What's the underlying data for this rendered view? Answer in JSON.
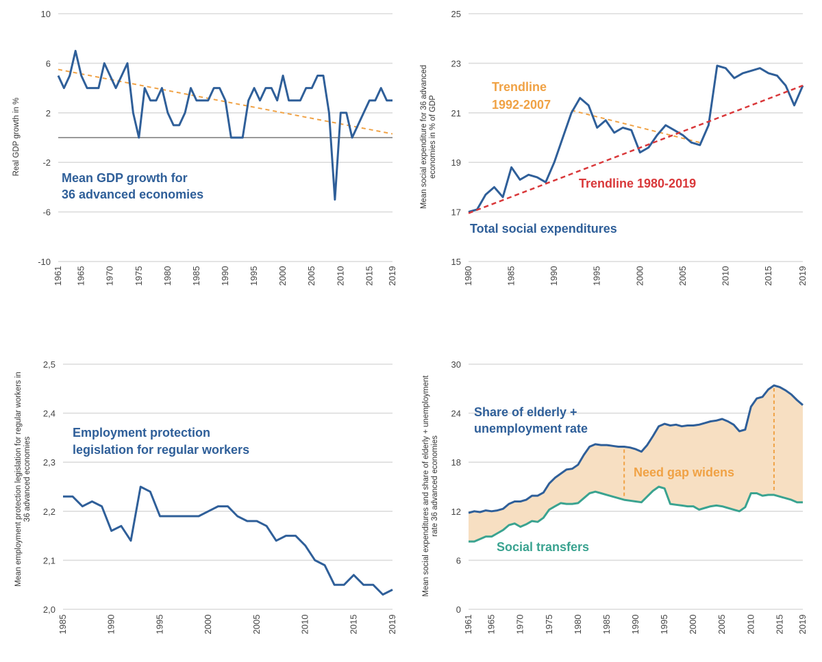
{
  "colors": {
    "series_blue": "#2f5f99",
    "trend_orange": "#f0a245",
    "trend_red": "#d9383a",
    "teal": "#3aa390",
    "gap_fill": "#f7dfc2",
    "zero_line": "#999999",
    "grid": "#dcdcdc"
  },
  "chart_data": [
    {
      "id": "gdp",
      "type": "line",
      "ylabel": "Real GDP growth in %",
      "ylim": [
        -10,
        10
      ],
      "yticks": [
        10,
        6,
        2,
        -2,
        -6,
        -10
      ],
      "xticks": [
        1961,
        1965,
        1970,
        1975,
        1980,
        1985,
        1990,
        1995,
        2000,
        2005,
        2010,
        2015,
        2019
      ],
      "grid": true,
      "zero_line": true,
      "annotation": "Mean GDP growth for\n36 advanced economies",
      "series": [
        {
          "x": [
            1961,
            1962,
            1963,
            1964,
            1965,
            1966,
            1967,
            1968,
            1969,
            1970,
            1971,
            1972,
            1973,
            1974,
            1975,
            1976,
            1977,
            1978,
            1979,
            1980,
            1981,
            1982,
            1983,
            1984,
            1985,
            1986,
            1987,
            1988,
            1989,
            1990,
            1991,
            1992,
            1993,
            1994,
            1995,
            1996,
            1997,
            1998,
            1999,
            2000,
            2001,
            2002,
            2003,
            2004,
            2005,
            2006,
            2007,
            2008,
            2009,
            2010,
            2011,
            2012,
            2013,
            2014,
            2015,
            2016,
            2017,
            2018,
            2019
          ],
          "values": [
            5,
            4,
            5,
            7,
            5,
            4,
            4,
            4,
            6,
            5,
            4,
            5,
            6,
            2,
            0,
            4,
            3,
            3,
            4,
            2,
            1,
            1,
            2,
            4,
            3,
            3,
            3,
            4,
            4,
            3,
            0,
            0,
            0,
            3,
            4,
            3,
            4,
            4,
            3,
            5,
            3,
            3,
            3,
            4,
            4,
            5,
            5,
            2,
            -5,
            2,
            2,
            0,
            1,
            2,
            3,
            3,
            4,
            3,
            3
          ]
        }
      ],
      "trendline": {
        "x": [
          1961,
          2019
        ],
        "values": [
          5.5,
          0.3
        ]
      }
    },
    {
      "id": "social",
      "type": "line",
      "ylabel": "Mean social expenditure for 36 advanced\neconomies  in % of GDP",
      "ylim": [
        15,
        25
      ],
      "yticks": [
        25,
        23,
        21,
        19,
        17,
        15
      ],
      "xticks": [
        1980,
        1985,
        1990,
        1995,
        2000,
        2005,
        2010,
        2015,
        2019
      ],
      "grid": true,
      "series": [
        {
          "name": "Total social expenditures",
          "x": [
            1980,
            1981,
            1982,
            1983,
            1984,
            1985,
            1986,
            1987,
            1988,
            1989,
            1990,
            1991,
            1992,
            1993,
            1994,
            1995,
            1996,
            1997,
            1998,
            1999,
            2000,
            2001,
            2002,
            2003,
            2004,
            2005,
            2006,
            2007,
            2008,
            2009,
            2010,
            2011,
            2012,
            2013,
            2014,
            2015,
            2016,
            2017,
            2018,
            2019
          ],
          "values": [
            17.0,
            17.1,
            17.7,
            18.0,
            17.6,
            18.8,
            18.3,
            18.5,
            18.4,
            18.2,
            19.0,
            20.0,
            21.0,
            21.6,
            21.3,
            20.4,
            20.7,
            20.2,
            20.4,
            20.3,
            19.4,
            19.6,
            20.1,
            20.5,
            20.3,
            20.1,
            19.8,
            19.7,
            20.5,
            22.9,
            22.8,
            22.4,
            22.6,
            22.7,
            22.8,
            22.6,
            22.5,
            22.1,
            21.3,
            22.1
          ]
        }
      ],
      "trendlines": [
        {
          "name": "Trendline\n1992-2007",
          "x": [
            1992,
            2007
          ],
          "values": [
            21.1,
            19.8
          ],
          "color_key": "trend_orange"
        },
        {
          "name": "Trendline 1980-2019",
          "x": [
            1980,
            2019
          ],
          "values": [
            16.95,
            22.1
          ],
          "color_key": "trend_red"
        }
      ]
    },
    {
      "id": "epl",
      "type": "line",
      "ylabel": "Mean employment protection legislation for regular workers in\n36 advanced economies",
      "ylim": [
        2.0,
        2.5
      ],
      "yticks": [
        "2,5",
        "2,4",
        "2,3",
        "2,2",
        "2,1",
        "2,0"
      ],
      "yticks_values": [
        2.5,
        2.4,
        2.3,
        2.2,
        2.1,
        2.0
      ],
      "xticks": [
        1985,
        1990,
        1995,
        2000,
        2005,
        2010,
        2015,
        2019
      ],
      "grid": true,
      "annotation": "Employment protection\nlegislation for regular workers",
      "series": [
        {
          "x": [
            1985,
            1986,
            1987,
            1988,
            1989,
            1990,
            1991,
            1992,
            1993,
            1994,
            1995,
            1996,
            1997,
            1998,
            1999,
            2000,
            2001,
            2002,
            2003,
            2004,
            2005,
            2006,
            2007,
            2008,
            2009,
            2010,
            2011,
            2012,
            2013,
            2014,
            2015,
            2016,
            2017,
            2018,
            2019
          ],
          "values": [
            2.23,
            2.23,
            2.21,
            2.22,
            2.21,
            2.16,
            2.17,
            2.14,
            2.25,
            2.24,
            2.19,
            2.19,
            2.19,
            2.19,
            2.19,
            2.2,
            2.21,
            2.21,
            2.19,
            2.18,
            2.18,
            2.17,
            2.14,
            2.15,
            2.15,
            2.13,
            2.1,
            2.09,
            2.05,
            2.05,
            2.07,
            2.05,
            2.05,
            2.03,
            2.04
          ]
        }
      ]
    },
    {
      "id": "need",
      "type": "area",
      "ylabel": "Mean social expenditures and share of elderly + unemployment\nrate 36 advanced economies",
      "ylim": [
        0,
        30
      ],
      "yticks": [
        30,
        24,
        18,
        12,
        6,
        0
      ],
      "xticks": [
        1961,
        1965,
        1970,
        1975,
        1980,
        1985,
        1990,
        1995,
        2000,
        2005,
        2010,
        2015,
        2019
      ],
      "grid": true,
      "gap_label": "Need gap widens",
      "gap_markers_x": [
        1988,
        2014
      ],
      "series": [
        {
          "name": "Share of elderly +\nunemployment rate",
          "x": [
            1961,
            1962,
            1963,
            1964,
            1965,
            1966,
            1967,
            1968,
            1969,
            1970,
            1971,
            1972,
            1973,
            1974,
            1975,
            1976,
            1977,
            1978,
            1979,
            1980,
            1981,
            1982,
            1983,
            1984,
            1985,
            1986,
            1987,
            1988,
            1989,
            1990,
            1991,
            1992,
            1993,
            1994,
            1995,
            1996,
            1997,
            1998,
            1999,
            2000,
            2001,
            2002,
            2003,
            2004,
            2005,
            2006,
            2007,
            2008,
            2009,
            2010,
            2011,
            2012,
            2013,
            2014,
            2015,
            2016,
            2017,
            2018,
            2019
          ],
          "values": [
            11.8,
            12.0,
            11.9,
            12.1,
            12.0,
            12.1,
            12.3,
            12.9,
            13.2,
            13.2,
            13.4,
            13.9,
            13.9,
            14.3,
            15.4,
            16.1,
            16.6,
            17.1,
            17.2,
            17.7,
            18.9,
            19.9,
            20.2,
            20.1,
            20.1,
            20.0,
            19.9,
            19.9,
            19.8,
            19.6,
            19.3,
            20.1,
            21.2,
            22.4,
            22.7,
            22.5,
            22.6,
            22.4,
            22.5,
            22.5,
            22.6,
            22.8,
            23.0,
            23.1,
            23.3,
            23.0,
            22.6,
            21.8,
            22.0,
            24.8,
            25.8,
            26.0,
            26.9,
            27.4,
            27.2,
            26.8,
            26.3,
            25.6,
            25.0
          ]
        },
        {
          "name": "Social transfers",
          "x": [
            1961,
            1962,
            1963,
            1964,
            1965,
            1966,
            1967,
            1968,
            1969,
            1970,
            1971,
            1972,
            1973,
            1974,
            1975,
            1976,
            1977,
            1978,
            1979,
            1980,
            1981,
            1982,
            1983,
            1984,
            1985,
            1986,
            1987,
            1988,
            1989,
            1990,
            1991,
            1992,
            1993,
            1994,
            1995,
            1996,
            1997,
            1998,
            1999,
            2000,
            2001,
            2002,
            2003,
            2004,
            2005,
            2006,
            2007,
            2008,
            2009,
            2010,
            2011,
            2012,
            2013,
            2014,
            2015,
            2016,
            2017,
            2018,
            2019
          ],
          "values": [
            8.3,
            8.3,
            8.6,
            8.9,
            8.9,
            9.3,
            9.7,
            10.3,
            10.5,
            10.1,
            10.4,
            10.8,
            10.7,
            11.2,
            12.2,
            12.6,
            13.0,
            12.9,
            12.9,
            13.0,
            13.6,
            14.2,
            14.4,
            14.2,
            14.0,
            13.8,
            13.6,
            13.4,
            13.3,
            13.2,
            13.1,
            13.8,
            14.5,
            15.0,
            14.8,
            12.9,
            12.8,
            12.7,
            12.6,
            12.6,
            12.2,
            12.4,
            12.6,
            12.7,
            12.6,
            12.4,
            12.2,
            12.0,
            12.5,
            14.2,
            14.2,
            13.9,
            14.0,
            14.0,
            13.8,
            13.6,
            13.4,
            13.1,
            13.1
          ]
        }
      ]
    }
  ]
}
